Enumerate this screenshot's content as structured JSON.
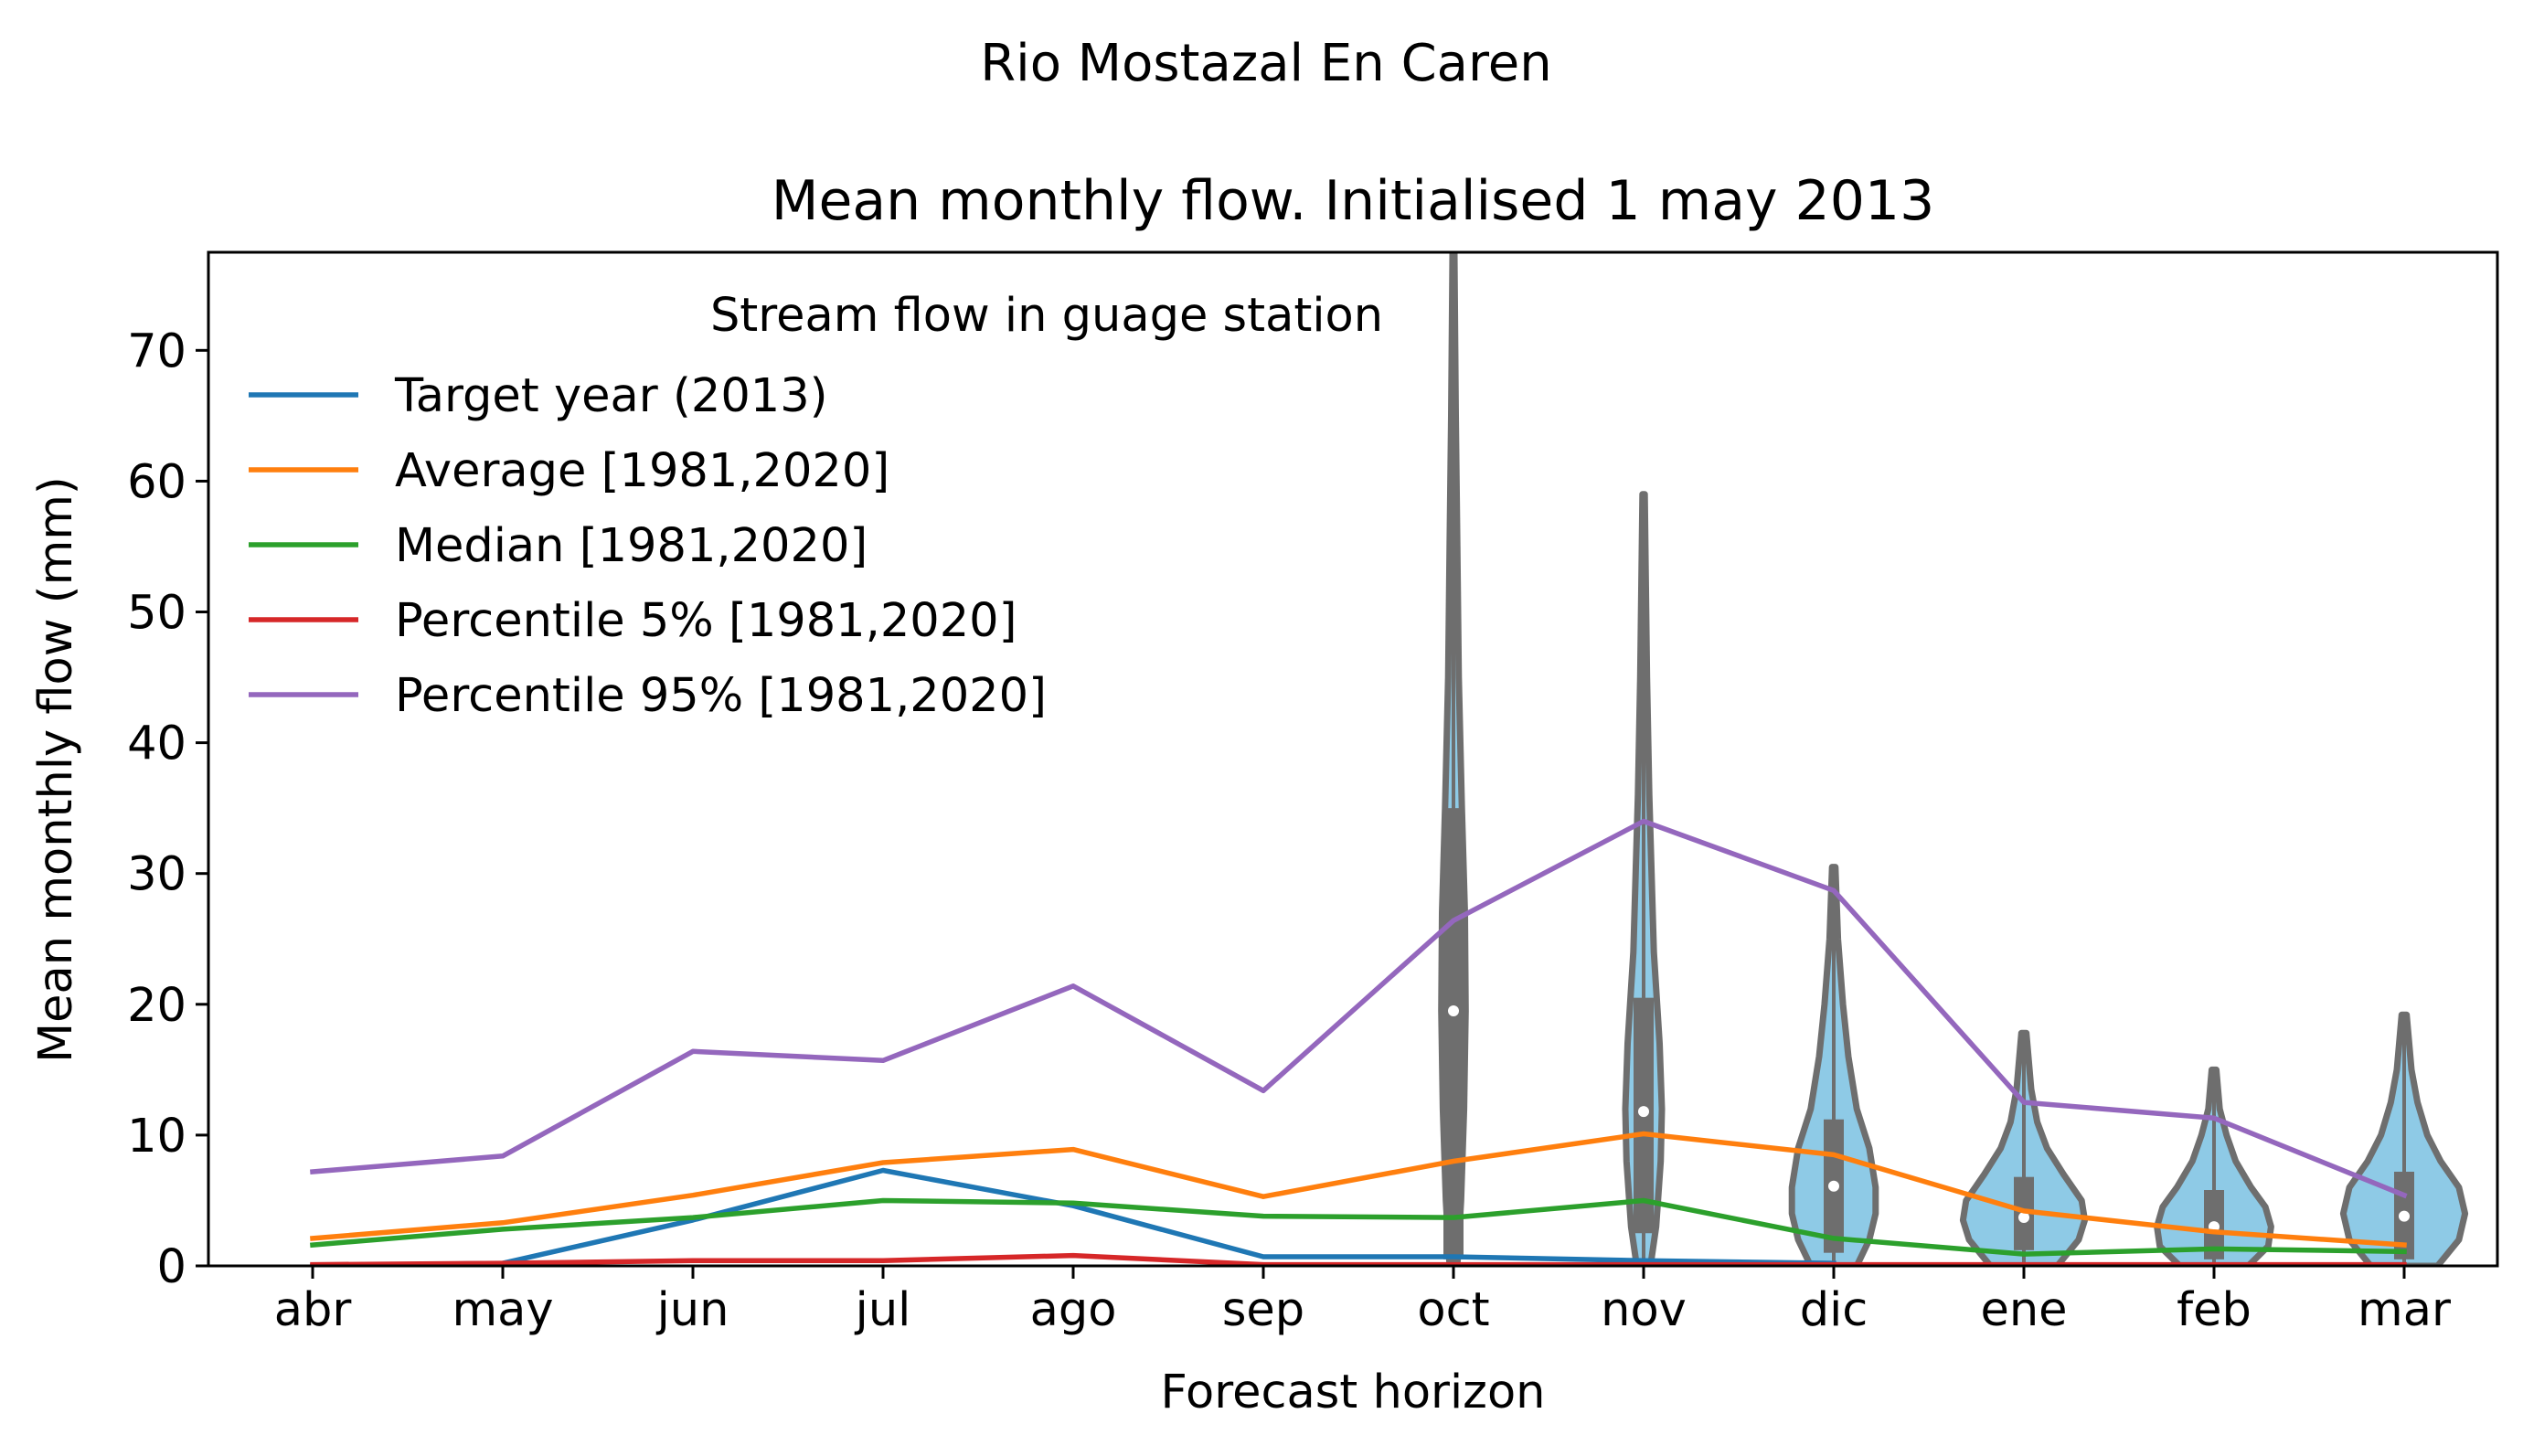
{
  "suptitle": "Rio Mostazal En Caren",
  "chart_data": {
    "type": "line",
    "title": "Mean monthly flow. Initialised 1 may 2013",
    "xlabel": "Forecast horizon",
    "ylabel": "Mean monthly flow (mm)",
    "categories": [
      "abr",
      "may",
      "jun",
      "jul",
      "ago",
      "sep",
      "oct",
      "nov",
      "dic",
      "ene",
      "feb",
      "mar"
    ],
    "ylim": [
      0,
      77.5
    ],
    "yticks": [
      0,
      10,
      20,
      30,
      40,
      50,
      60,
      70
    ],
    "grid": false,
    "legend": {
      "title": "Stream flow in guage station",
      "placement": "upper-left"
    },
    "series": [
      {
        "name": "Target year (2013)",
        "color": "#1f77b4",
        "values": [
          0.0,
          0.2,
          3.5,
          7.3,
          4.6,
          0.7,
          0.7,
          0.4,
          0.2,
          null,
          null,
          null
        ]
      },
      {
        "name": "Average [1981,2020]",
        "color": "#ff7f0e",
        "values": [
          2.1,
          3.3,
          5.4,
          7.9,
          8.9,
          5.3,
          8.0,
          10.1,
          8.5,
          4.2,
          2.6,
          1.6
        ]
      },
      {
        "name": "Median [1981,2020]",
        "color": "#2ca02c",
        "values": [
          1.6,
          2.8,
          3.7,
          5.0,
          4.8,
          3.8,
          3.7,
          5.0,
          2.1,
          0.9,
          1.3,
          1.1
        ]
      },
      {
        "name": "Percentile 5% [1981,2020]",
        "color": "#d62728",
        "values": [
          0.1,
          0.2,
          0.4,
          0.4,
          0.8,
          0.1,
          0.1,
          0.1,
          0.1,
          0.1,
          0.1,
          0.1
        ]
      },
      {
        "name": "Percentile 95% [1981,2020]",
        "color": "#9467bd",
        "values": [
          7.2,
          8.4,
          16.4,
          15.7,
          21.4,
          13.4,
          26.4,
          34.0,
          28.7,
          12.5,
          11.3,
          5.4
        ]
      }
    ],
    "violins": {
      "fill_color": "#8ecae6",
      "edge_color": "#6e6e6e",
      "items": [
        {
          "category": "oct",
          "min": 0.0,
          "max": 77.5,
          "q1": 0.5,
          "median": 19.5,
          "q3": 35.0,
          "halfwidth": 0.08,
          "profile": [
            [
              0,
              0.25
            ],
            [
              5,
              0.5
            ],
            [
              12,
              0.7
            ],
            [
              19.5,
              0.8
            ],
            [
              27,
              0.75
            ],
            [
              35,
              0.55
            ],
            [
              45,
              0.35
            ],
            [
              55,
              0.25
            ],
            [
              65,
              0.15
            ],
            [
              77.5,
              0.06
            ]
          ]
        },
        {
          "category": "nov",
          "min": 0.0,
          "max": 59.0,
          "q1": 2.5,
          "median": 11.8,
          "q3": 20.5,
          "halfwidth": 0.12,
          "profile": [
            [
              0,
              0.3
            ],
            [
              3,
              0.55
            ],
            [
              8,
              0.75
            ],
            [
              12,
              0.8
            ],
            [
              17,
              0.7
            ],
            [
              24,
              0.45
            ],
            [
              30,
              0.35
            ],
            [
              36,
              0.25
            ],
            [
              45,
              0.15
            ],
            [
              59,
              0.05
            ]
          ]
        },
        {
          "category": "dic",
          "min": 0.0,
          "max": 30.5,
          "q1": 1.0,
          "median": 6.1,
          "q3": 11.2,
          "halfwidth": 0.22,
          "profile": [
            [
              0,
              0.55
            ],
            [
              2,
              0.85
            ],
            [
              4,
              1.0
            ],
            [
              6,
              1.0
            ],
            [
              9,
              0.85
            ],
            [
              12,
              0.55
            ],
            [
              16,
              0.35
            ],
            [
              20,
              0.22
            ],
            [
              25,
              0.1
            ],
            [
              30.5,
              0.04
            ]
          ]
        },
        {
          "category": "ene",
          "min": 0.0,
          "max": 17.8,
          "q1": 1.2,
          "median": 3.7,
          "q3": 6.8,
          "halfwidth": 0.32,
          "profile": [
            [
              0,
              0.55
            ],
            [
              2,
              0.9
            ],
            [
              3.5,
              1.0
            ],
            [
              5,
              0.95
            ],
            [
              7,
              0.65
            ],
            [
              9,
              0.38
            ],
            [
              11,
              0.22
            ],
            [
              13.5,
              0.12
            ],
            [
              17.8,
              0.04
            ]
          ]
        },
        {
          "category": "feb",
          "min": 0.0,
          "max": 15.0,
          "q1": 0.5,
          "median": 3.0,
          "q3": 5.8,
          "halfwidth": 0.3,
          "profile": [
            [
              0,
              0.6
            ],
            [
              1.5,
              0.95
            ],
            [
              3,
              1.0
            ],
            [
              4.5,
              0.9
            ],
            [
              6,
              0.65
            ],
            [
              8,
              0.38
            ],
            [
              10,
              0.22
            ],
            [
              12,
              0.1
            ],
            [
              15,
              0.04
            ]
          ]
        },
        {
          "category": "mar",
          "min": 0.0,
          "max": 19.2,
          "q1": 0.5,
          "median": 3.8,
          "q3": 7.2,
          "halfwidth": 0.32,
          "profile": [
            [
              0,
              0.55
            ],
            [
              2,
              0.9
            ],
            [
              4,
              1.0
            ],
            [
              6,
              0.9
            ],
            [
              8,
              0.6
            ],
            [
              10,
              0.38
            ],
            [
              12.5,
              0.22
            ],
            [
              15,
              0.12
            ],
            [
              19.2,
              0.04
            ]
          ]
        }
      ]
    }
  }
}
